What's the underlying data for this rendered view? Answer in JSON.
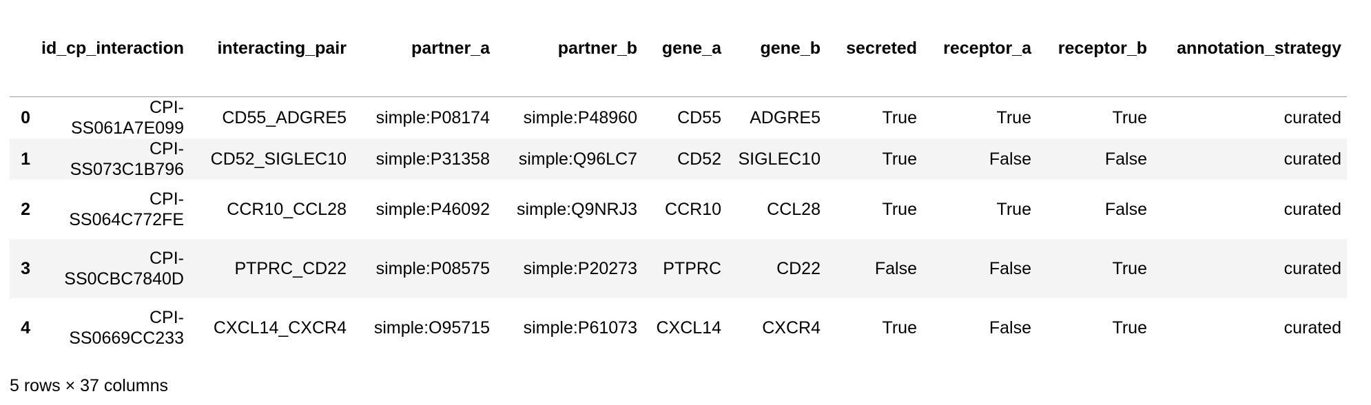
{
  "table": {
    "columns": [
      "",
      "id_cp_interaction",
      "interacting_pair",
      "partner_a",
      "partner_b",
      "gene_a",
      "gene_b",
      "secreted",
      "receptor_a",
      "receptor_b",
      "annotation_strategy"
    ],
    "rows": [
      {
        "index": "0",
        "id_cp_interaction": "CPI-SS061A7E099",
        "interacting_pair": "CD55_ADGRE5",
        "partner_a": "simple:P08174",
        "partner_b": "simple:P48960",
        "gene_a": "CD55",
        "gene_b": "ADGRE5",
        "secreted": "True",
        "receptor_a": "True",
        "receptor_b": "True",
        "annotation_strategy": "curated"
      },
      {
        "index": "1",
        "id_cp_interaction": "CPI-SS073C1B796",
        "interacting_pair": "CD52_SIGLEC10",
        "partner_a": "simple:P31358",
        "partner_b": "simple:Q96LC7",
        "gene_a": "CD52",
        "gene_b": "SIGLEC10",
        "secreted": "True",
        "receptor_a": "False",
        "receptor_b": "False",
        "annotation_strategy": "curated"
      },
      {
        "index": "2",
        "id_cp_interaction": "CPI-SS064C772FE",
        "interacting_pair": "CCR10_CCL28",
        "partner_a": "simple:P46092",
        "partner_b": "simple:Q9NRJ3",
        "gene_a": "CCR10",
        "gene_b": "CCL28",
        "secreted": "True",
        "receptor_a": "True",
        "receptor_b": "False",
        "annotation_strategy": "curated"
      },
      {
        "index": "3",
        "id_cp_interaction": "CPI-SS0CBC7840D",
        "interacting_pair": "PTPRC_CD22",
        "partner_a": "simple:P08575",
        "partner_b": "simple:P20273",
        "gene_a": "PTPRC",
        "gene_b": "CD22",
        "secreted": "False",
        "receptor_a": "False",
        "receptor_b": "True",
        "annotation_strategy": "curated"
      },
      {
        "index": "4",
        "id_cp_interaction": "CPI-SS0669CC233",
        "interacting_pair": "CXCL14_CXCR4",
        "partner_a": "simple:O95715",
        "partner_b": "simple:P61073",
        "gene_a": "CXCL14",
        "gene_b": "CXCR4",
        "secreted": "True",
        "receptor_a": "False",
        "receptor_b": "True",
        "annotation_strategy": "curated"
      }
    ]
  },
  "footer": {
    "summary": "5 rows × 37 columns"
  }
}
